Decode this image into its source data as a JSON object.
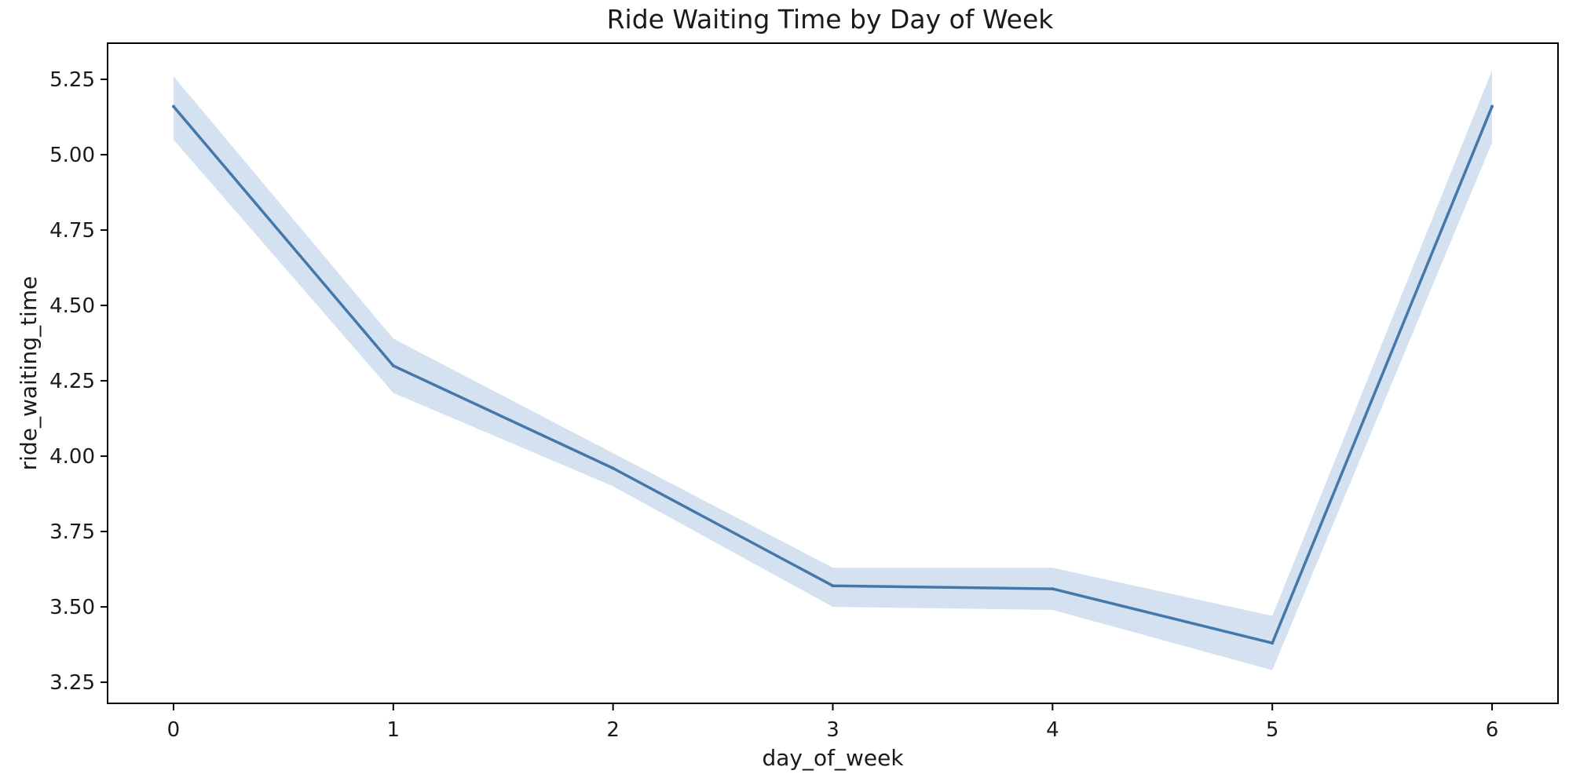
{
  "chart_data": {
    "type": "line",
    "title": "Ride Waiting Time by Day of Week",
    "xlabel": "day_of_week",
    "ylabel": "ride_waiting_time",
    "x": [
      0,
      1,
      2,
      3,
      4,
      5,
      6
    ],
    "xlim": [
      -0.3,
      6.3
    ],
    "ylim": [
      3.18,
      5.37
    ],
    "xticks": [
      0,
      1,
      2,
      3,
      4,
      5,
      6
    ],
    "yticks": [
      3.25,
      3.5,
      3.75,
      4.0,
      4.25,
      4.5,
      4.75,
      5.0,
      5.25
    ],
    "ytick_labels": [
      "3.25",
      "3.50",
      "3.75",
      "4.00",
      "4.25",
      "4.50",
      "4.75",
      "5.00",
      "5.25"
    ],
    "grid": false,
    "series": [
      {
        "values": [
          5.16,
          4.3,
          3.96,
          3.57,
          3.56,
          3.38,
          5.16
        ],
        "ci_lower": [
          5.05,
          4.21,
          3.9,
          3.5,
          3.49,
          3.29,
          5.04
        ],
        "ci_upper": [
          5.26,
          4.39,
          4.01,
          3.63,
          3.63,
          3.47,
          5.28
        ],
        "color": "#4477aa",
        "band_color": "#c6d7eb"
      }
    ]
  }
}
